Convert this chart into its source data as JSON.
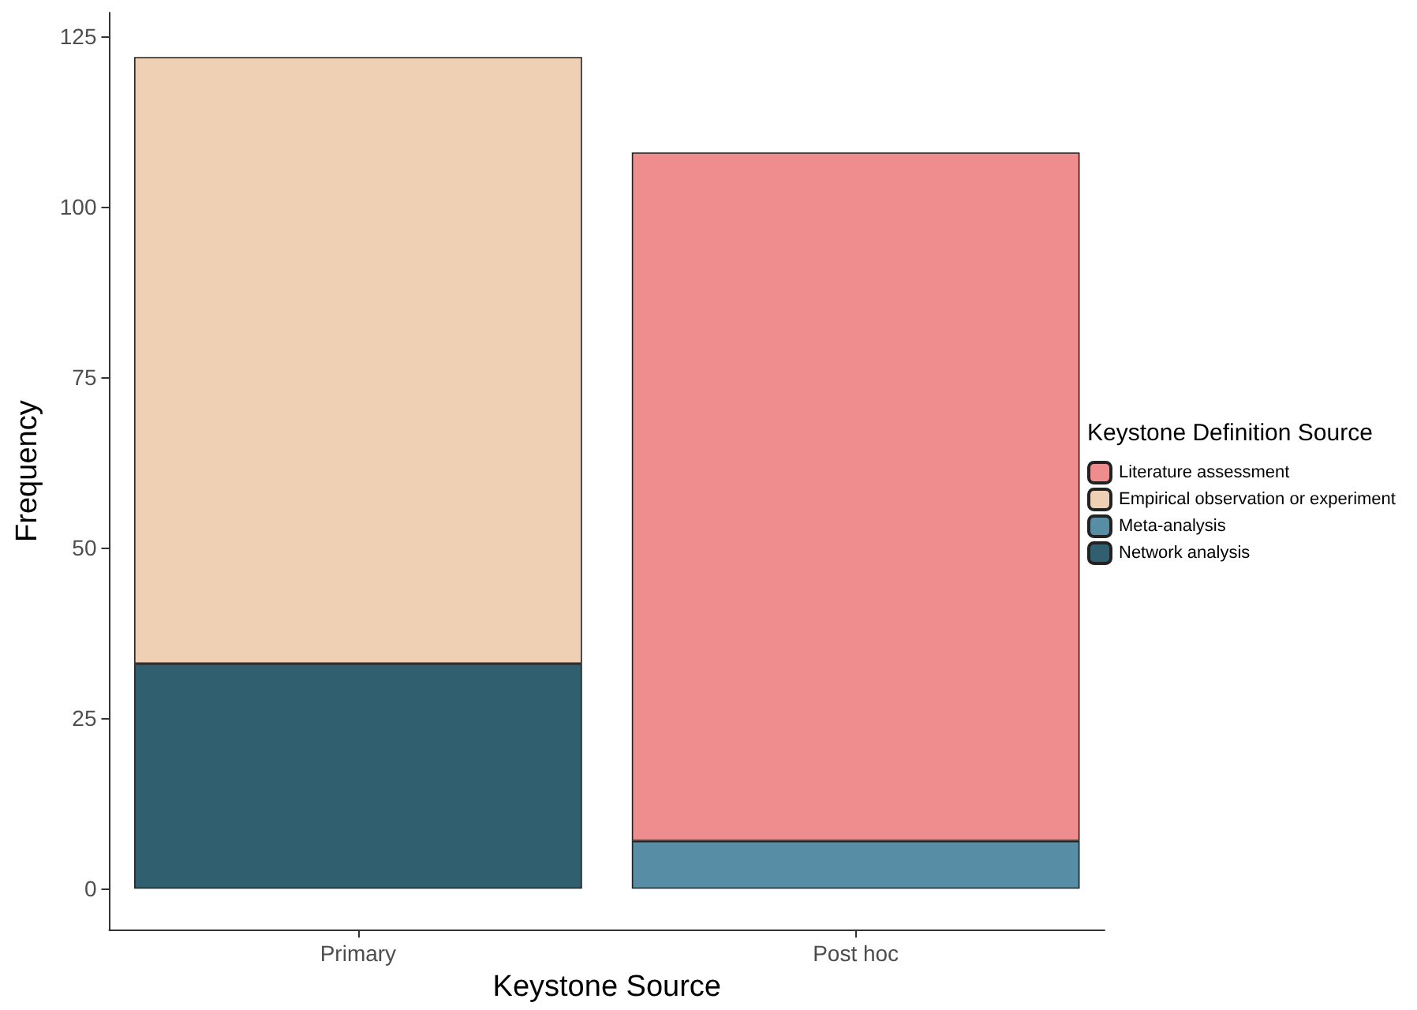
{
  "chart_data": {
    "type": "bar",
    "stacked": true,
    "xlabel": "Keystone Source",
    "ylabel": "Frequency",
    "legend_title": "Keystone Definition Source",
    "categories": [
      "Primary",
      "Post hoc"
    ],
    "series": [
      {
        "name": "Network analysis",
        "color": "#305f6f",
        "values": [
          33,
          null
        ]
      },
      {
        "name": "Meta-analysis",
        "color": "#578ea5",
        "values": [
          null,
          7
        ]
      },
      {
        "name": "Empirical observation or experiment",
        "color": "#efd0b4",
        "values": [
          89,
          null
        ]
      },
      {
        "name": "Literature assessment",
        "color": "#ef8c8d",
        "values": [
          null,
          101
        ]
      }
    ],
    "ylim": [
      -6,
      128.5
    ],
    "yticks": [
      0,
      25,
      50,
      75,
      100,
      125
    ],
    "grid": false,
    "legend": "right"
  }
}
